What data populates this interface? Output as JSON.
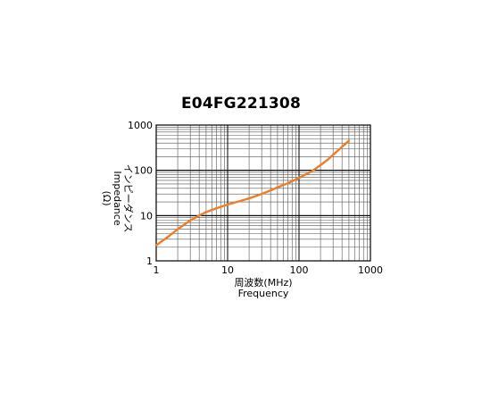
{
  "chart_data": {
    "type": "line",
    "title": "E04FG221308",
    "xlabel_jp": "周波数(MHz)",
    "xlabel_en": "Frequency",
    "ylabel_en": "Impedance",
    "ylabel_jp": "インピーダンス",
    "ylabel_unit": "(Ω)",
    "xscale": "log",
    "yscale": "log",
    "xlim": [
      1,
      1000
    ],
    "ylim": [
      1,
      1000
    ],
    "grid": true,
    "xticks": [
      "1",
      "10",
      "100",
      "1000"
    ],
    "yticks": [
      "1",
      "10",
      "100",
      "1000"
    ],
    "series": [
      {
        "color": "#ee7d28",
        "x": [
          1,
          1.5,
          2,
          3,
          4,
          5,
          7,
          10,
          15,
          20,
          30,
          40,
          50,
          70,
          100,
          150,
          200,
          250,
          300,
          400,
          500
        ],
        "y": [
          2.2,
          3.5,
          5.0,
          7.8,
          10.0,
          12.0,
          14.5,
          17.5,
          21.0,
          24.0,
          30.0,
          36.0,
          42.0,
          52.0,
          68.0,
          95.0,
          130.0,
          170.0,
          220.0,
          330.0,
          450.0
        ]
      }
    ]
  }
}
